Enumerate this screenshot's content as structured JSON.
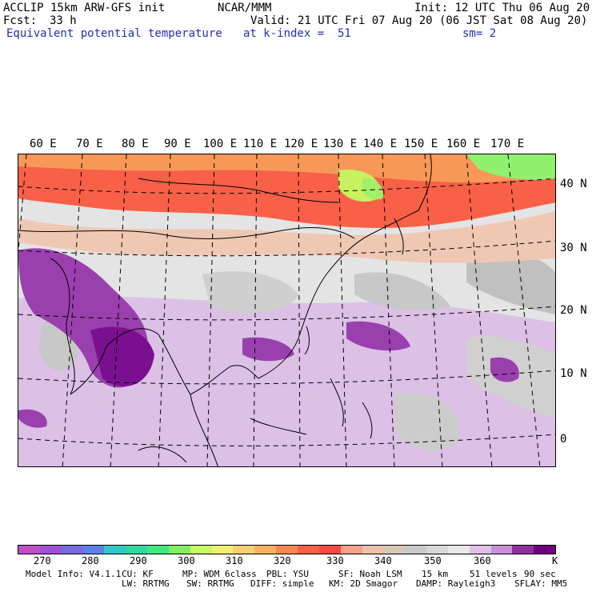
{
  "header": {
    "model": "ACCLIP 15km ARW-GFS init",
    "center": "NCAR/MMM",
    "init": "Init: 12 UTC Thu 06 Aug 20",
    "fcst_label": "Fcst:",
    "fcst_value": "33 h",
    "valid": "Valid: 21 UTC Fri 07 Aug 20 (06 JST Sat 08 Aug 20)",
    "field": "Equivalent potential temperature",
    "level": "at k-index =  51",
    "smooth": "sm= 2"
  },
  "map": {
    "lon_labels": [
      "60 E",
      "70 E",
      "80 E",
      "90 E",
      "100 E",
      "110 E",
      "120 E",
      "130 E",
      "140 E",
      "150 E",
      "160 E",
      "170 E"
    ],
    "lat_labels": [
      "40 N",
      "30 N",
      "20 N",
      "10 N",
      "0"
    ]
  },
  "colorbar": {
    "unit": "K",
    "labels": [
      "270",
      "280",
      "290",
      "300",
      "310",
      "320",
      "330",
      "340",
      "350",
      "360"
    ],
    "colors": [
      "#c050c8",
      "#a050d8",
      "#7a6ae0",
      "#5a82e8",
      "#30c8c8",
      "#30d8a0",
      "#40e880",
      "#80f060",
      "#c8f860",
      "#f0f070",
      "#f8d070",
      "#f8b060",
      "#f88850",
      "#f86048",
      "#f84840",
      "#f8a088",
      "#f0c0a8",
      "#d8c8b8",
      "#c8c8c8",
      "#d8d8d8",
      "#e8e8e8",
      "#e0c0e8",
      "#c890d8",
      "#9030a0",
      "#700080"
    ]
  },
  "footer": {
    "line1": [
      "Model Info: V4.1.1",
      "CU: KF",
      "MP: WDM 6class",
      "PBL: YSU",
      "SF: Noah LSM",
      "15 km",
      "51 levels",
      "90 sec"
    ],
    "line2": [
      "LW: RRTMG",
      "SW: RRTMG",
      "DIFF: simple",
      "KM: 2D Smagor",
      "DAMP: Rayleigh3",
      "SFLAY: MM5"
    ]
  }
}
